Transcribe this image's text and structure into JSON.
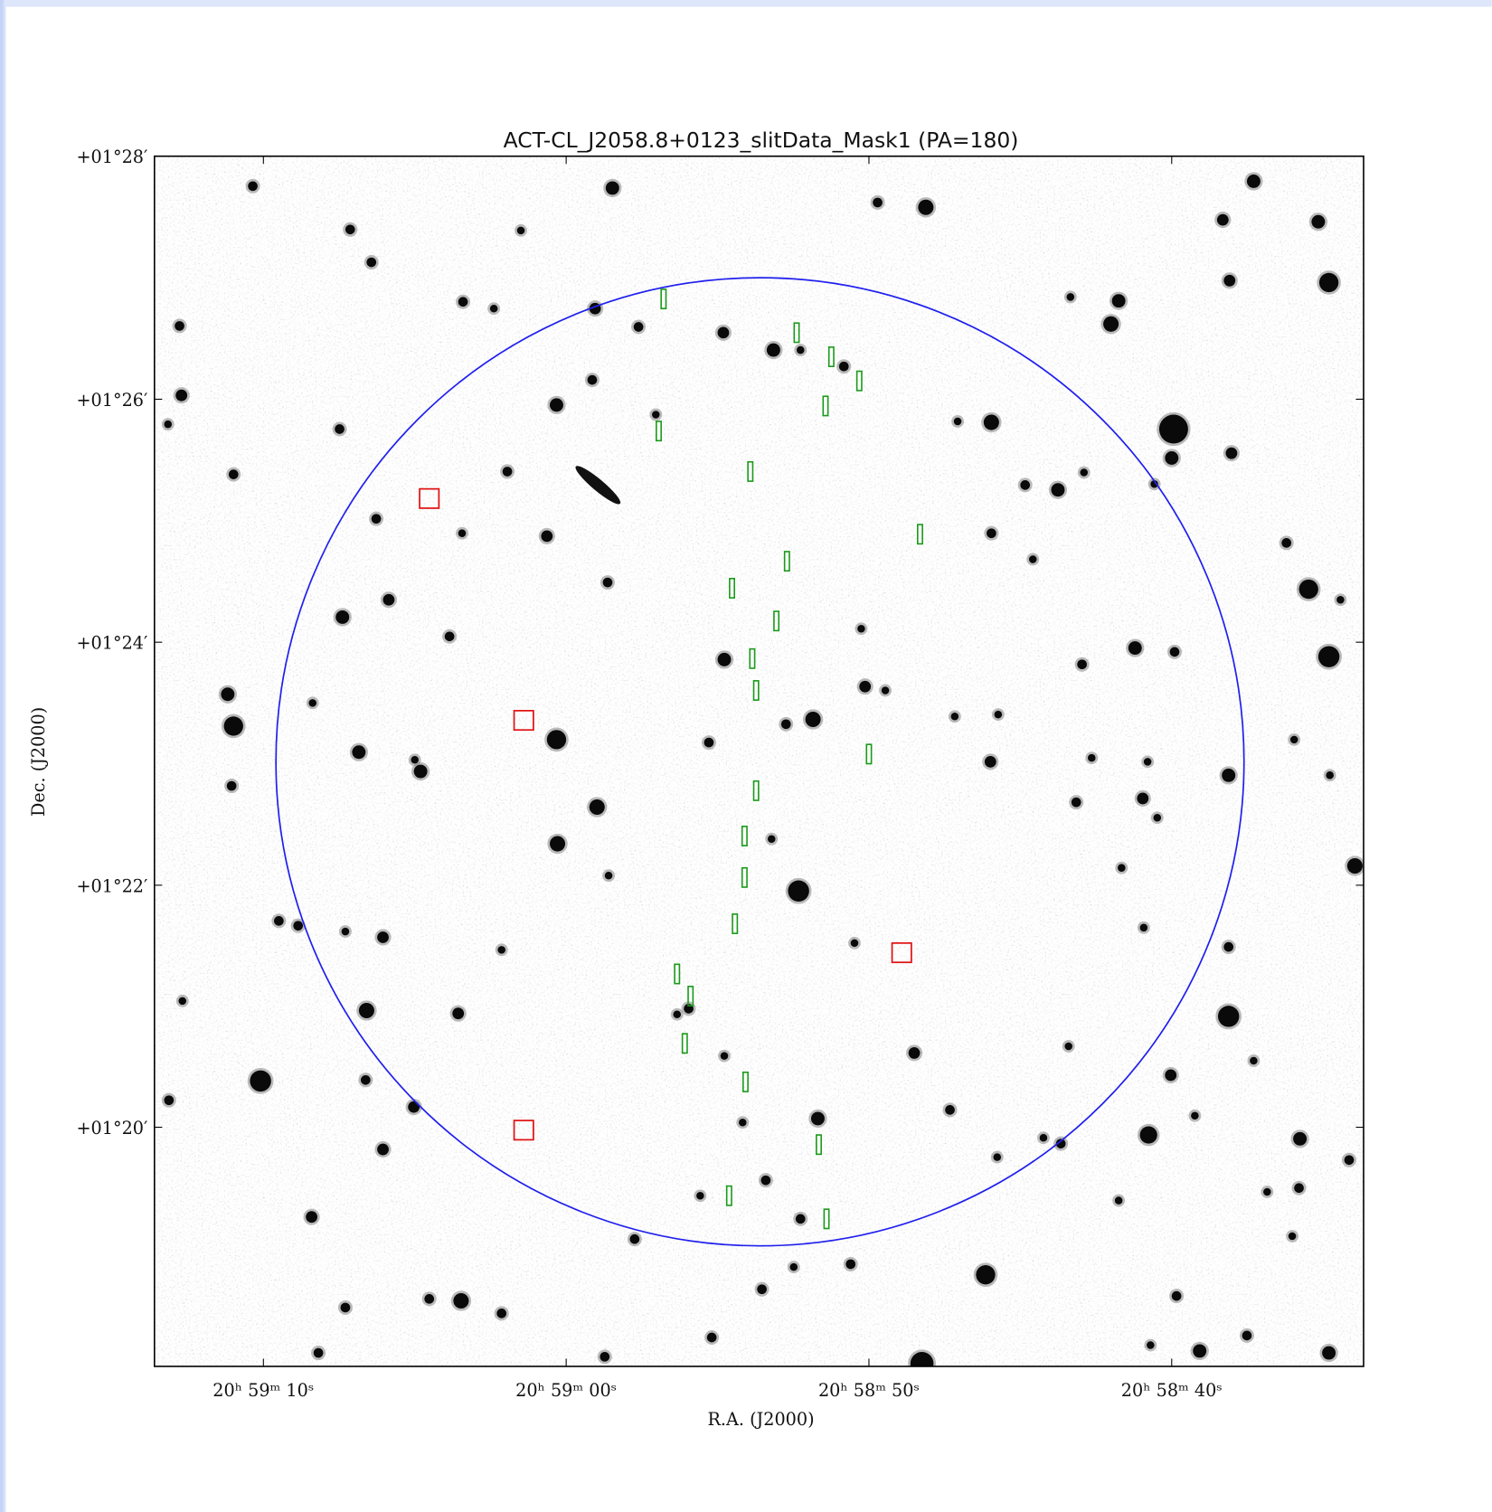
{
  "figure": {
    "title": "ACT-CL_J2058.8+0123_slitData_Mask1 (PA=180)",
    "x_label": "R.A. (J2000)",
    "y_label": "Dec. (J2000)",
    "x_ticks": [
      "20ʰ 59ᵐ 10ˢ",
      "20ʰ 59ᵐ 00ˢ",
      "20ʰ 58ᵐ 50ˢ",
      "20ʰ 58ᵐ 40ˢ"
    ],
    "y_ticks": [
      "+01°28′",
      "+01°26′",
      "+01°24′",
      "+01°22′",
      "+01°20′"
    ]
  }
}
